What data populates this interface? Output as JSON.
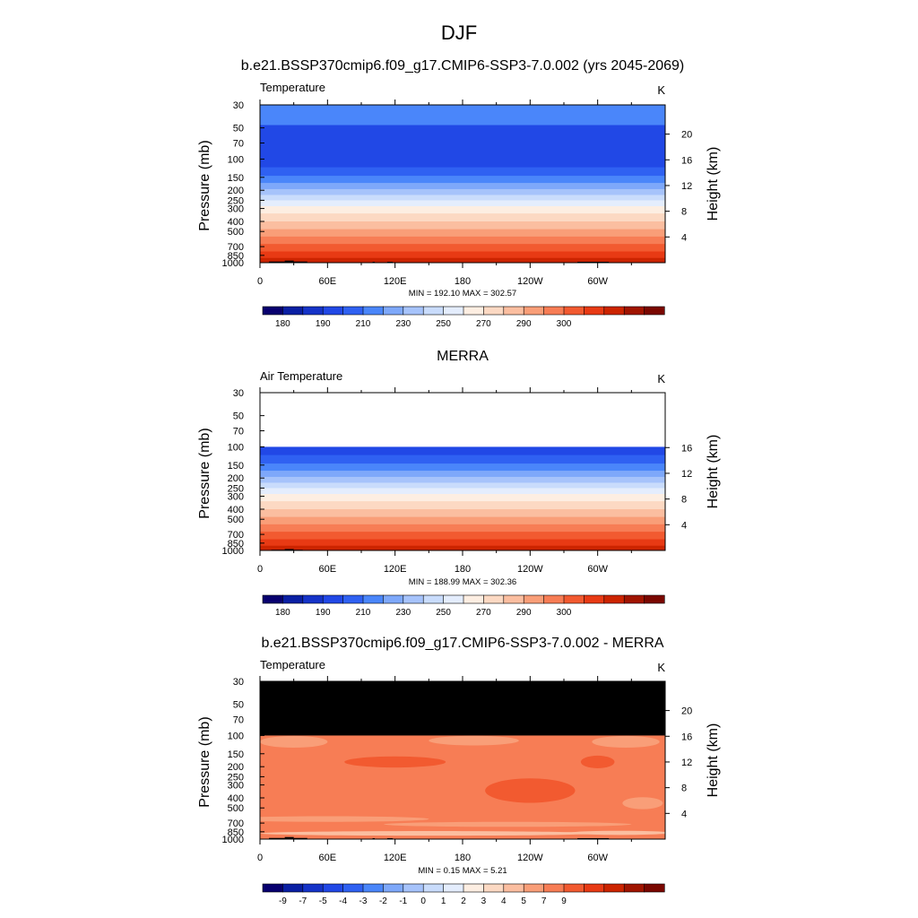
{
  "figure": {
    "season": "DJF",
    "x_ticks": [
      "0",
      "60E",
      "120E",
      "180",
      "120W",
      "60W"
    ],
    "pressure_ticks": [
      "30",
      "50",
      "70",
      "100",
      "150",
      "200",
      "250",
      "300",
      "400",
      "500",
      "700",
      "850",
      "1000"
    ],
    "y_left_label": "Pressure (mb)",
    "y_right_label": "Height (km)",
    "colorbar_abs": {
      "labels": [
        "180",
        "190",
        "210",
        "230",
        "250",
        "270",
        "290",
        "300"
      ],
      "colors": [
        "#08006f",
        "#0a1fa3",
        "#1533c8",
        "#2148e6",
        "#2f61f2",
        "#4a86fa",
        "#7ea8fa",
        "#a6c3fb",
        "#c9dcfc",
        "#e4edfd",
        "#fdeee2",
        "#fcd9c3",
        "#fbbea0",
        "#f99e78",
        "#f77d55",
        "#f25a30",
        "#e83a14",
        "#cc2400",
        "#a01400",
        "#7a0700"
      ]
    },
    "colorbar_diff": {
      "labels": [
        "-9",
        "-7",
        "-5",
        "-4",
        "-3",
        "-2",
        "-1",
        "0",
        "1",
        "2",
        "3",
        "4",
        "5",
        "7",
        "9"
      ],
      "colors": [
        "#08006f",
        "#0a1fa3",
        "#1533c8",
        "#2148e6",
        "#2f61f2",
        "#4a86fa",
        "#7ea8fa",
        "#a6c3fb",
        "#c9dcfc",
        "#e4edfd",
        "#fdeee2",
        "#fcd9c3",
        "#fbbea0",
        "#f99e78",
        "#f77d55",
        "#f25a30",
        "#e83a14",
        "#cc2400",
        "#a01400",
        "#7a0700"
      ]
    }
  },
  "chart_data": [
    {
      "type": "heatmap",
      "title": "b.e21.BSSP370cmip6.f09_g17.CMIP6-SSP3-7.0.002 (yrs 2045-2069)",
      "left_label": "Temperature",
      "units": "K",
      "ylabel": "Pressure (mb)",
      "y2label": "Height (km)",
      "height_ticks": [
        "4",
        "8",
        "12",
        "16",
        "20"
      ],
      "stats": "MIN = 192.10  MAX = 302.57",
      "min": 192.1,
      "max": 302.57,
      "x_range": [
        0,
        360
      ],
      "pressure_range": [
        30,
        1000
      ],
      "layers": [
        {
          "p_top": 30,
          "p_bottom": 47,
          "color": "#4a86fa"
        },
        {
          "p_top": 47,
          "p_bottom": 120,
          "color": "#2148e6"
        },
        {
          "p_top": 120,
          "p_bottom": 145,
          "color": "#2f61f2"
        },
        {
          "p_top": 145,
          "p_bottom": 170,
          "color": "#4a86fa"
        },
        {
          "p_top": 170,
          "p_bottom": 195,
          "color": "#7ea8fa"
        },
        {
          "p_top": 195,
          "p_bottom": 222,
          "color": "#a6c3fb"
        },
        {
          "p_top": 222,
          "p_bottom": 250,
          "color": "#c9dcfc"
        },
        {
          "p_top": 250,
          "p_bottom": 285,
          "color": "#e4edfd"
        },
        {
          "p_top": 285,
          "p_bottom": 335,
          "color": "#fdeee2"
        },
        {
          "p_top": 335,
          "p_bottom": 400,
          "color": "#fcd9c3"
        },
        {
          "p_top": 400,
          "p_bottom": 475,
          "color": "#fbbea0"
        },
        {
          "p_top": 475,
          "p_bottom": 560,
          "color": "#f99e78"
        },
        {
          "p_top": 560,
          "p_bottom": 660,
          "color": "#f77d55"
        },
        {
          "p_top": 660,
          "p_bottom": 780,
          "color": "#f25a30"
        },
        {
          "p_top": 780,
          "p_bottom": 900,
          "color": "#e83a14"
        },
        {
          "p_top": 900,
          "p_bottom": 1000,
          "color": "#cc2400"
        }
      ],
      "terrain": [
        {
          "lon0": 8,
          "lon1": 22,
          "p": 975
        },
        {
          "lon0": 22,
          "lon1": 30,
          "p": 955
        },
        {
          "lon0": 30,
          "lon1": 42,
          "p": 975
        },
        {
          "lon0": 100,
          "lon1": 102,
          "p": 980
        },
        {
          "lon0": 113,
          "lon1": 118,
          "p": 980
        },
        {
          "lon0": 282,
          "lon1": 310,
          "p": 980
        }
      ]
    },
    {
      "type": "heatmap",
      "title": "MERRA",
      "left_label": "Air Temperature",
      "units": "K",
      "ylabel": "Pressure (mb)",
      "y2label": "Height (km)",
      "height_ticks": [
        "4",
        "8",
        "12",
        "16"
      ],
      "stats": "MIN = 188.99  MAX = 302.36",
      "min": 188.99,
      "max": 302.36,
      "x_range": [
        0,
        360
      ],
      "pressure_range": [
        30,
        1000
      ],
      "layers": [
        {
          "p_top": 100,
          "p_bottom": 120,
          "color": "#2148e6"
        },
        {
          "p_top": 120,
          "p_bottom": 145,
          "color": "#2f61f2"
        },
        {
          "p_top": 145,
          "p_bottom": 170,
          "color": "#4a86fa"
        },
        {
          "p_top": 170,
          "p_bottom": 195,
          "color": "#7ea8fa"
        },
        {
          "p_top": 195,
          "p_bottom": 222,
          "color": "#a6c3fb"
        },
        {
          "p_top": 222,
          "p_bottom": 250,
          "color": "#c9dcfc"
        },
        {
          "p_top": 250,
          "p_bottom": 285,
          "color": "#e4edfd"
        },
        {
          "p_top": 285,
          "p_bottom": 335,
          "color": "#fdeee2"
        },
        {
          "p_top": 335,
          "p_bottom": 400,
          "color": "#fcd9c3"
        },
        {
          "p_top": 400,
          "p_bottom": 475,
          "color": "#fbbea0"
        },
        {
          "p_top": 475,
          "p_bottom": 560,
          "color": "#f99e78"
        },
        {
          "p_top": 560,
          "p_bottom": 660,
          "color": "#f77d55"
        },
        {
          "p_top": 660,
          "p_bottom": 780,
          "color": "#f25a30"
        },
        {
          "p_top": 780,
          "p_bottom": 900,
          "color": "#e83a14"
        },
        {
          "p_top": 900,
          "p_bottom": 1000,
          "color": "#cc2400"
        }
      ],
      "terrain": [
        {
          "lon0": 10,
          "lon1": 22,
          "p": 985
        },
        {
          "lon0": 22,
          "lon1": 30,
          "p": 970
        },
        {
          "lon0": 30,
          "lon1": 38,
          "p": 985
        }
      ]
    },
    {
      "type": "heatmap",
      "title": "b.e21.BSSP370cmip6.f09_g17.CMIP6-SSP3-7.0.002 - MERRA",
      "left_label": "Temperature",
      "units": "K",
      "ylabel": "Pressure (mb)",
      "y2label": "Height (km)",
      "height_ticks": [
        "4",
        "8",
        "12",
        "16",
        "20"
      ],
      "stats": "MIN =   0.15  MAX =   5.21",
      "min": 0.15,
      "max": 5.21,
      "x_range": [
        0,
        360
      ],
      "pressure_range": [
        30,
        1000
      ],
      "base_color": "#f77d55",
      "masked_region": {
        "p_top": 30,
        "p_bottom": 100,
        "color": "#000000"
      },
      "patches": [
        {
          "lon": 30,
          "p": 115,
          "rx": 30,
          "rp": 15,
          "color": "#f99e78"
        },
        {
          "lon": 190,
          "p": 112,
          "rx": 40,
          "rp": 12,
          "color": "#f99e78"
        },
        {
          "lon": 325,
          "p": 115,
          "rx": 30,
          "rp": 15,
          "color": "#f99e78"
        },
        {
          "lon": 120,
          "p": 180,
          "rx": 45,
          "rp": 22,
          "color": "#f25a30"
        },
        {
          "lon": 240,
          "p": 340,
          "rx": 40,
          "rp": 90,
          "color": "#f25a30"
        },
        {
          "lon": 300,
          "p": 180,
          "rx": 15,
          "rp": 25,
          "color": "#f25a30"
        },
        {
          "lon": 340,
          "p": 450,
          "rx": 18,
          "rp": 60,
          "color": "#f99e78"
        },
        {
          "lon": 60,
          "p": 640,
          "rx": 90,
          "rp": 40,
          "color": "#f99e78"
        },
        {
          "lon": 220,
          "p": 720,
          "rx": 110,
          "rp": 40,
          "color": "#f99e78"
        },
        {
          "lon": 150,
          "p": 880,
          "rx": 150,
          "rp": 45,
          "color": "#fbbea0"
        },
        {
          "lon": 320,
          "p": 870,
          "rx": 45,
          "rp": 40,
          "color": "#fbbea0"
        }
      ],
      "terrain": [
        {
          "lon0": 8,
          "lon1": 22,
          "p": 975
        },
        {
          "lon0": 22,
          "lon1": 30,
          "p": 955
        },
        {
          "lon0": 30,
          "lon1": 42,
          "p": 975
        },
        {
          "lon0": 100,
          "lon1": 102,
          "p": 980
        },
        {
          "lon0": 113,
          "lon1": 118,
          "p": 980
        },
        {
          "lon0": 282,
          "lon1": 310,
          "p": 980
        }
      ]
    }
  ]
}
